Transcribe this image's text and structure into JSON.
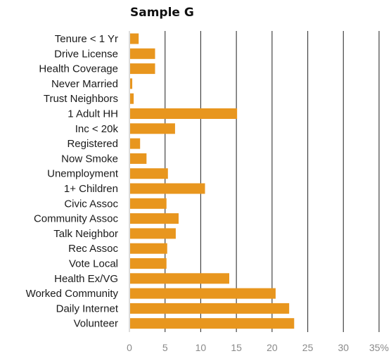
{
  "chart_data": {
    "type": "bar",
    "orientation": "horizontal",
    "title": "Sample G",
    "xlabel": "",
    "ylabel": "",
    "categories": [
      "Tenure < 1 Yr",
      "Drive License",
      "Health Coverage",
      "Never Married",
      "Trust Neighbors",
      "1 Adult HH",
      "Inc < 20k",
      "Registered",
      "Now Smoke",
      "Unemployment",
      "1+ Children",
      "Civic Assoc",
      "Community Assoc",
      "Talk Neighbor",
      "Rec Assoc",
      "Vote Local",
      "Health Ex/VG",
      "Worked Community",
      "Daily Internet",
      "Volunteer"
    ],
    "values": [
      1.3,
      3.6,
      3.6,
      0.4,
      0.6,
      15.1,
      6.4,
      1.5,
      2.4,
      5.4,
      10.6,
      5.2,
      6.9,
      6.5,
      5.3,
      5.2,
      14.0,
      20.5,
      22.4,
      23.1
    ],
    "xlim": [
      0,
      35
    ],
    "xticks": [
      0,
      5,
      10,
      15,
      20,
      25,
      30,
      35
    ],
    "xtick_labels": [
      "0",
      "5",
      "10",
      "15",
      "20",
      "25",
      "30",
      "35%"
    ],
    "grid": true,
    "legend": "none",
    "bar_color": "#E8961E",
    "grid_color": "#444444"
  }
}
